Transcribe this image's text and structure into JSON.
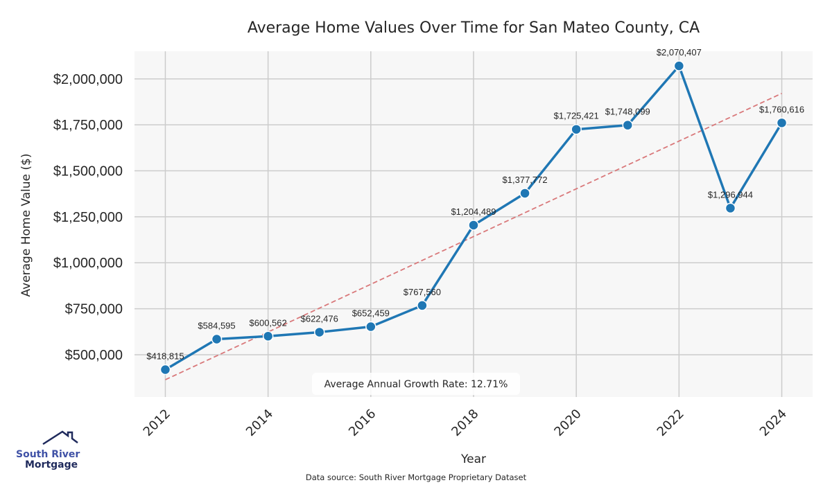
{
  "chart_data": {
    "type": "line",
    "title": "Average Home Values Over Time for San Mateo County, CA",
    "xlabel": "Year",
    "ylabel": "Average Home Value ($)",
    "x": [
      2012,
      2013,
      2014,
      2015,
      2016,
      2017,
      2018,
      2019,
      2020,
      2021,
      2022,
      2023,
      2024
    ],
    "series": [
      {
        "name": "Average Home Value",
        "values": [
          418815,
          584595,
          600562,
          622476,
          652459,
          767560,
          1204489,
          1377772,
          1725421,
          1748099,
          2070407,
          1296944,
          1760616
        ],
        "labels": [
          "$418,815",
          "$584,595",
          "$600,562",
          "$622,476",
          "$652,459",
          "$767,560",
          "$1,204,489",
          "$1,377,772",
          "$1,725,421",
          "$1,748,099",
          "$2,070,407",
          "$1,296,944",
          "$1,760,616"
        ],
        "color": "#1f77b4"
      },
      {
        "name": "Trend line",
        "style": "dashed",
        "x": [
          2012,
          2024
        ],
        "values": [
          364000,
          1921000
        ],
        "color": "#d9787a"
      }
    ],
    "xticks": [
      2012,
      2014,
      2016,
      2018,
      2020,
      2022,
      2024
    ],
    "xtick_labels": [
      "2012",
      "2014",
      "2016",
      "2018",
      "2020",
      "2022",
      "2024"
    ],
    "yticks": [
      500000,
      750000,
      1000000,
      1250000,
      1500000,
      1750000,
      2000000
    ],
    "ytick_labels": [
      "$500,000",
      "$750,000",
      "$1,000,000",
      "$1,250,000",
      "$1,500,000",
      "$1,750,000",
      "$2,000,000"
    ],
    "xlim": [
      2011.4,
      2024.6
    ],
    "ylim": [
      270000,
      2150000
    ],
    "grid": true,
    "annotation": "Average Annual Growth Rate: 12.71%",
    "source": "Data source: South River Mortgage Proprietary Dataset",
    "plot_background": "#f7f7f7",
    "grid_color": "#cccccc"
  },
  "logo": {
    "line1": "South River",
    "line2": "Mortgage",
    "color1": "#3f51a6",
    "color2": "#1f2a5c"
  }
}
